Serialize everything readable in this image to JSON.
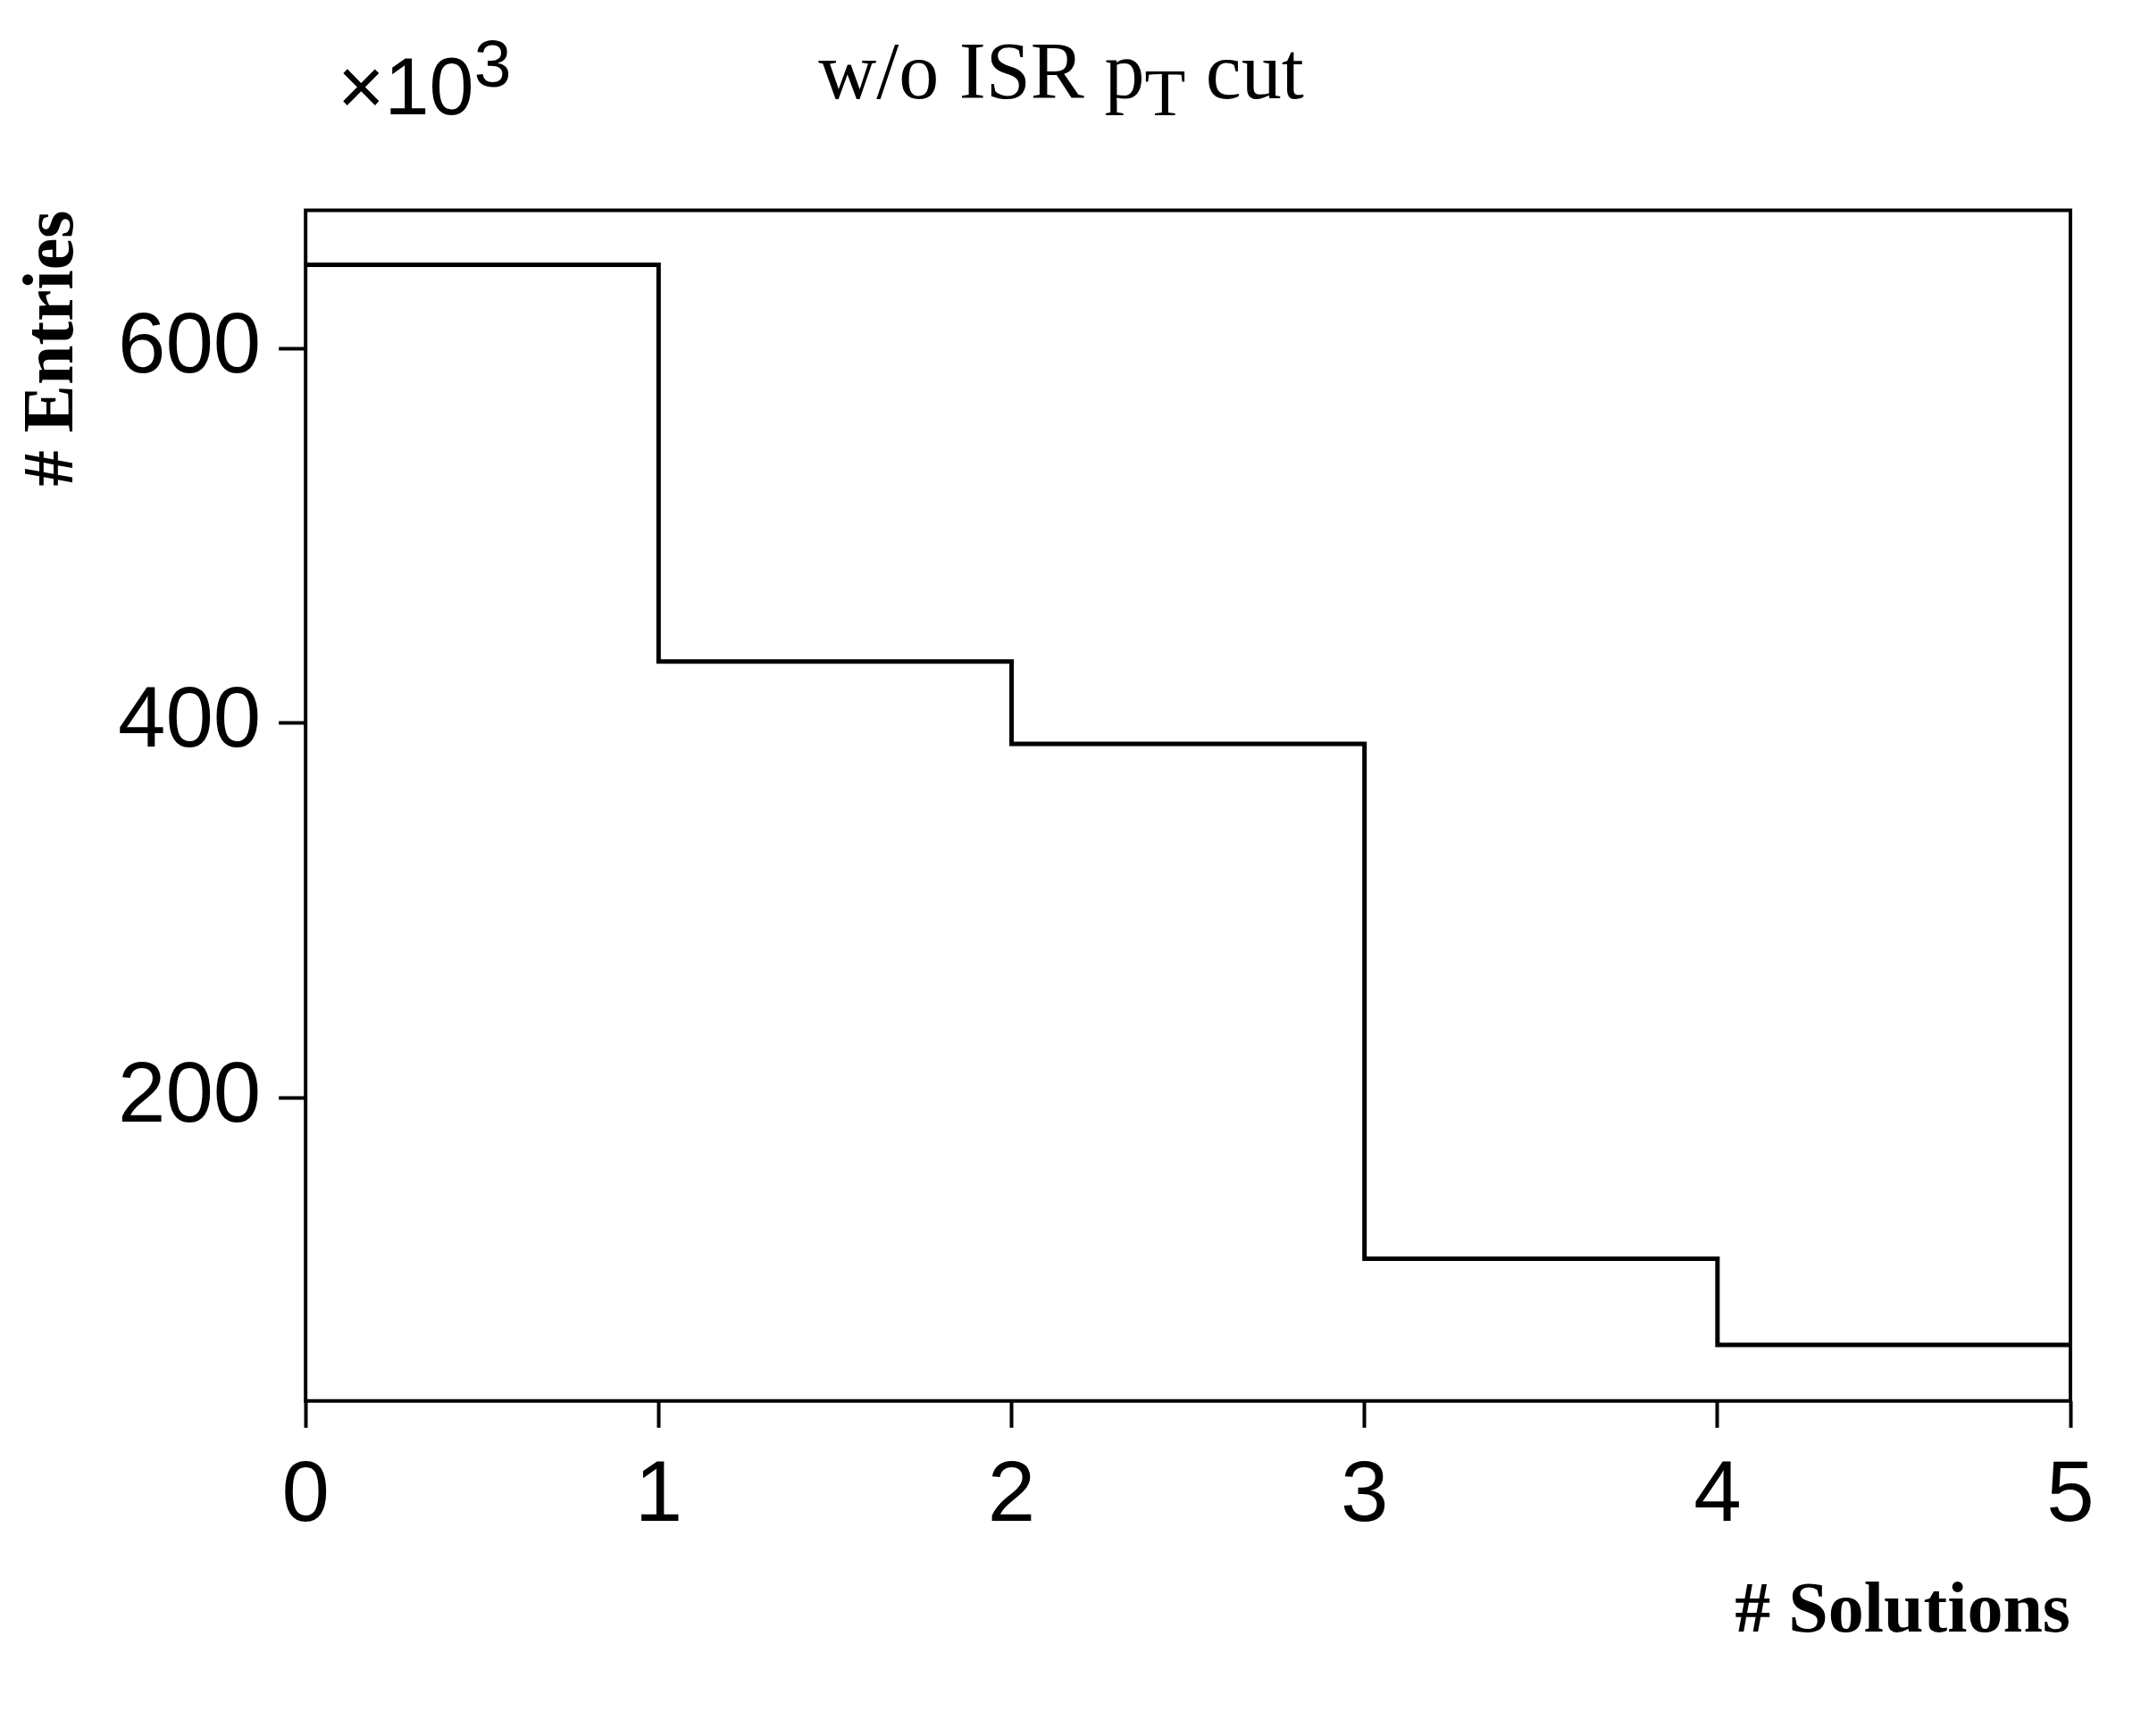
{
  "chart_data": {
    "type": "histogram",
    "title": "w/o  ISR p$_{T}$ cut",
    "xlabel": "# Solutions",
    "ylabel": "# Entries",
    "annotations": [
      "×10$^{3}$"
    ],
    "bins": [
      0,
      1,
      2,
      3,
      4,
      5
    ],
    "values": [
      645,
      433,
      389,
      114,
      68
    ],
    "color": "#000000",
    "xlim": [
      0,
      5
    ],
    "xticks": [
      0,
      1,
      2,
      3,
      4,
      5
    ],
    "ylim": [
      38,
      674
    ],
    "yticks": [
      200,
      400,
      600
    ],
    "grid": false,
    "legend": false
  }
}
